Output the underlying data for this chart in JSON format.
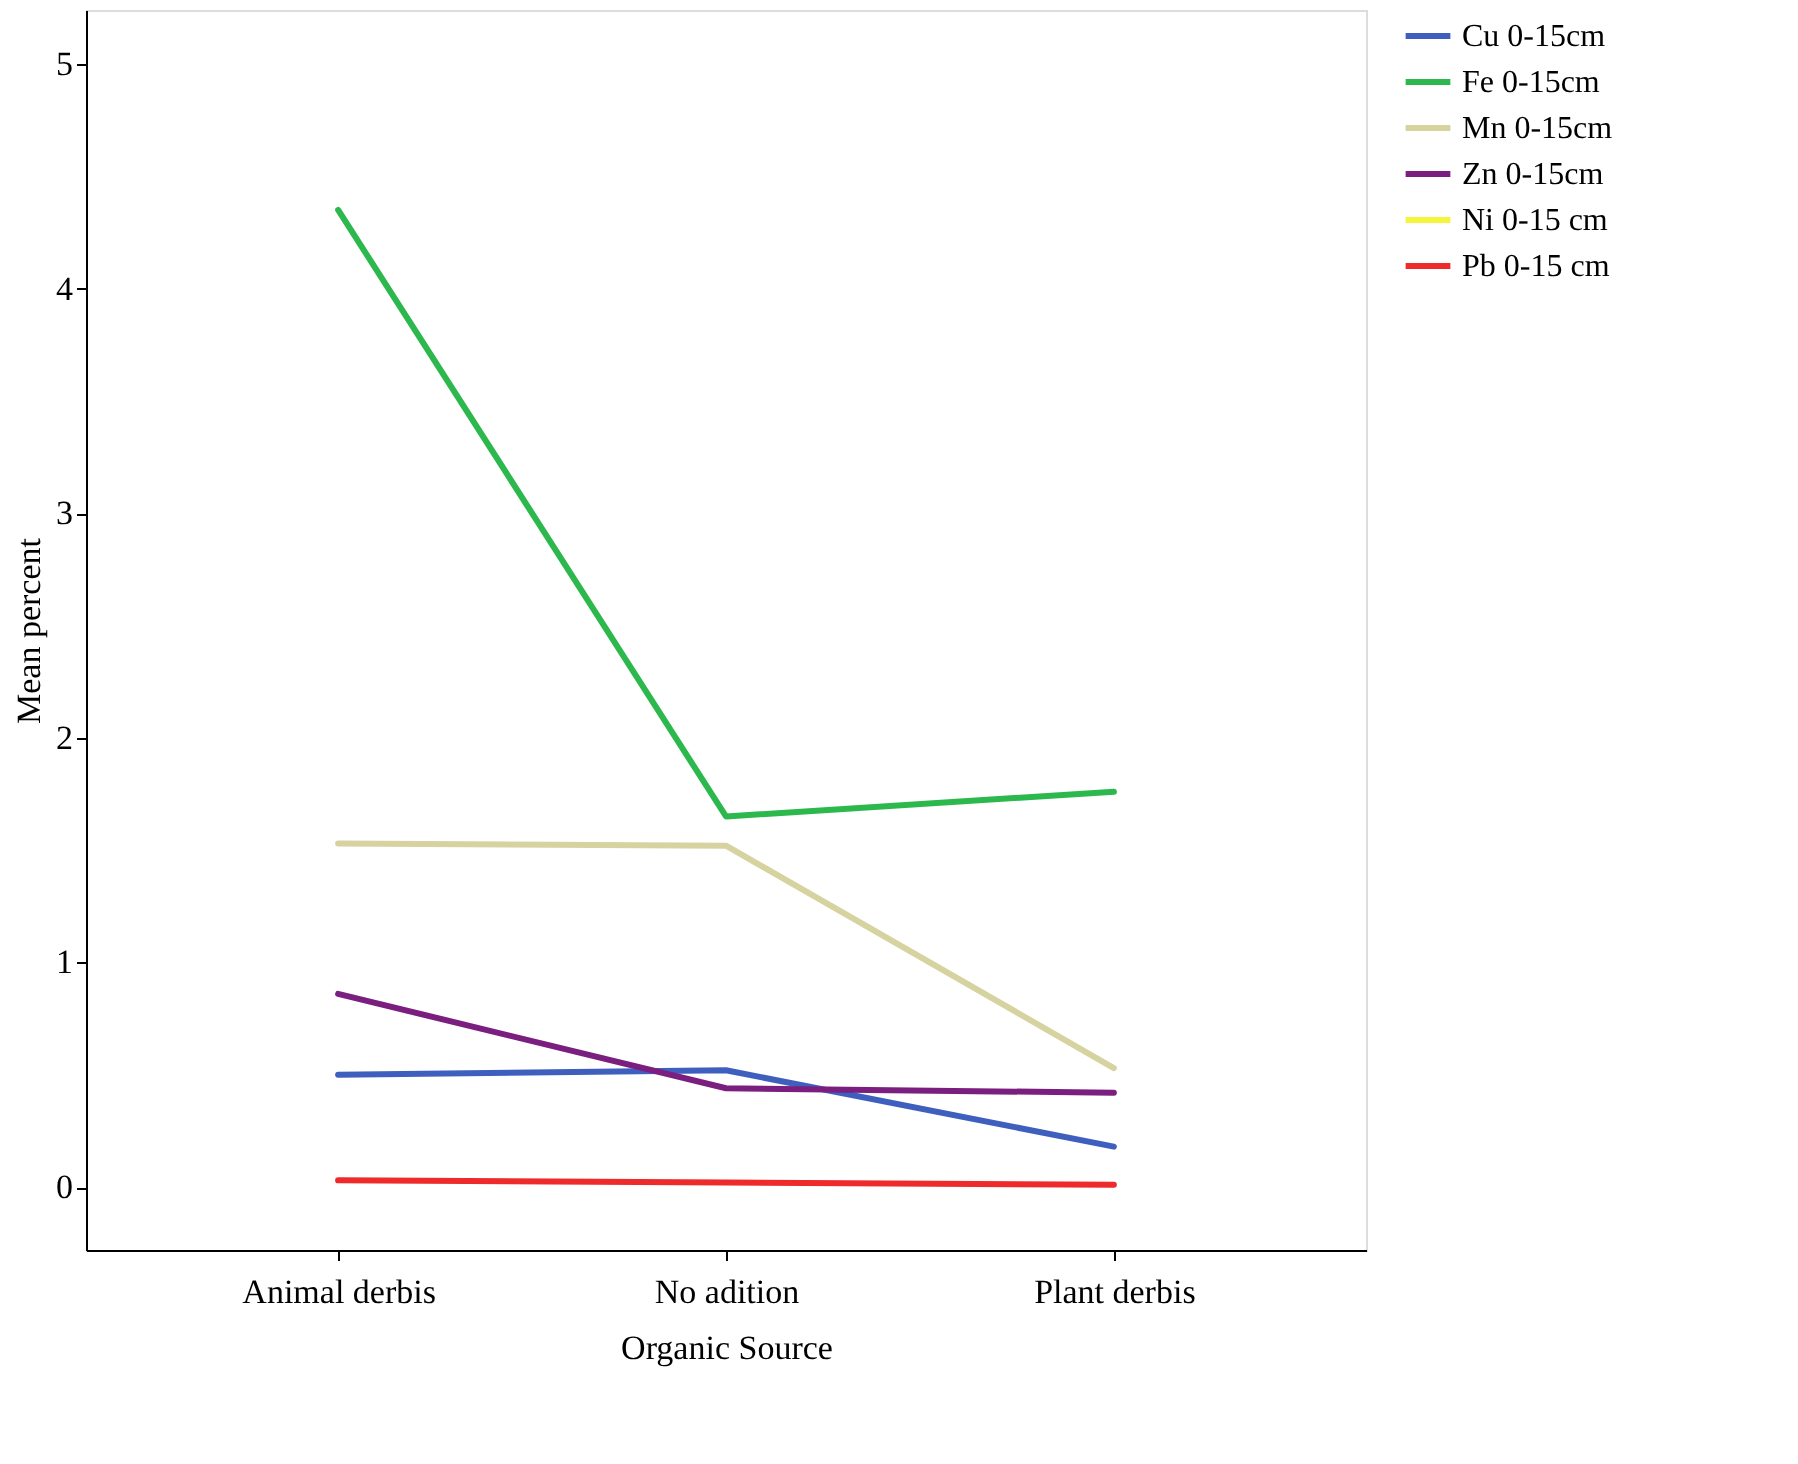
{
  "chart_data": {
    "type": "line",
    "xlabel": "Organic Source",
    "ylabel": "Mean percent",
    "categories": [
      "Animal derbis",
      "No adition",
      "Plant derbis"
    ],
    "series": [
      {
        "name": "Cu 0-15cm",
        "color": "#3f5fbf",
        "values": [
          0.5,
          0.52,
          0.18
        ]
      },
      {
        "name": "Fe 0-15cm",
        "color": "#2db84d",
        "values": [
          4.35,
          1.65,
          1.76
        ]
      },
      {
        "name": "Mn 0-15cm",
        "color": "#d6d3a0",
        "values": [
          1.53,
          1.52,
          0.53
        ]
      },
      {
        "name": "Zn 0-15cm",
        "color": "#7a1f7f",
        "values": [
          0.86,
          0.44,
          0.42
        ]
      },
      {
        "name": "Ni 0-15 cm",
        "color": "#f5f53c",
        "values": [
          null,
          null,
          null
        ]
      },
      {
        "name": "Pb 0-15 cm",
        "color": "#ee2a2a",
        "values": [
          0.03,
          0.02,
          0.01
        ]
      }
    ],
    "ylim": [
      -0.28,
      5.24
    ],
    "yticks": [
      0,
      1,
      2,
      3,
      4,
      5
    ],
    "grid": false,
    "legend": "top right",
    "marker": "none",
    "line_style": "solid"
  }
}
